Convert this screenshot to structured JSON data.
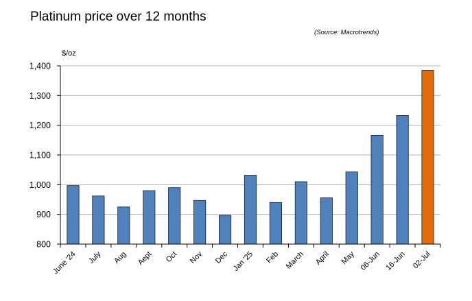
{
  "chart_data": {
    "type": "bar",
    "title": "Platinum price over 12 months",
    "source": "(Source: Macrotrends)",
    "ylabel": "$/oz",
    "xlabel": "",
    "ylim": [
      800,
      1400
    ],
    "yticks": [
      800,
      900,
      1000,
      1100,
      1200,
      1300,
      1400
    ],
    "ytick_labels": [
      "800",
      "900",
      "1,000",
      "1,100",
      "1,200",
      "1,300",
      "1,400"
    ],
    "grid": true,
    "categories": [
      "June '24",
      "July",
      "Aug",
      "Aept",
      "Oct",
      "Nov",
      "Dec",
      "Jan '25",
      "Feb",
      "March",
      "April",
      "May",
      "06-Jun",
      "16-Jun",
      "02-Jul"
    ],
    "values": [
      997,
      962,
      925,
      980,
      990,
      947,
      897,
      1032,
      940,
      1010,
      956,
      1043,
      1166,
      1233,
      1385
    ],
    "colors": {
      "bar": "#4f81bd",
      "highlight": "#e36c0a",
      "bar_border": "#1f1f1f",
      "grid": "#b0b0b0"
    },
    "highlight_index": 14
  }
}
